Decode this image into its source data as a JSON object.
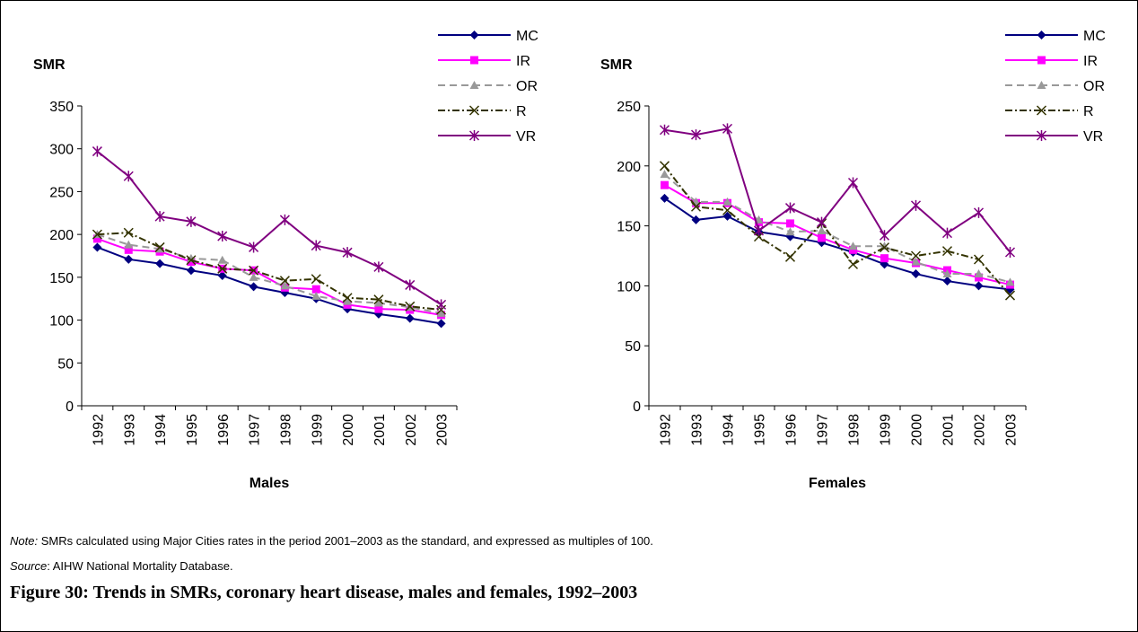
{
  "chart_data": [
    {
      "type": "line",
      "title": "Males",
      "ylabel": "SMR",
      "categories": [
        "1992",
        "1993",
        "1994",
        "1995",
        "1996",
        "1997",
        "1998",
        "1999",
        "2000",
        "2001",
        "2002",
        "2003"
      ],
      "ylim": [
        0,
        350
      ],
      "yticks": [
        0,
        50,
        100,
        150,
        200,
        250,
        300,
        350
      ],
      "series": [
        {
          "name": "MC",
          "color": "#000080",
          "marker": "diamond",
          "dash": "solid",
          "values": [
            185,
            171,
            166,
            158,
            152,
            139,
            132,
            125,
            113,
            107,
            102,
            96
          ]
        },
        {
          "name": "IR",
          "color": "#ff00ff",
          "marker": "square",
          "dash": "solid",
          "values": [
            195,
            182,
            180,
            168,
            160,
            158,
            138,
            136,
            118,
            113,
            112,
            106
          ]
        },
        {
          "name": "OR",
          "color": "#999999",
          "marker": "triangle",
          "dash": "dashed",
          "values": [
            200,
            188,
            183,
            172,
            170,
            150,
            140,
            128,
            122,
            120,
            115,
            108
          ]
        },
        {
          "name": "R",
          "color": "#333300",
          "marker": "x",
          "dash": "dashdot",
          "values": [
            200,
            202,
            185,
            170,
            160,
            158,
            146,
            148,
            126,
            124,
            116,
            112
          ]
        },
        {
          "name": "VR",
          "color": "#800080",
          "marker": "star",
          "dash": "solid",
          "values": [
            297,
            268,
            221,
            215,
            198,
            185,
            217,
            187,
            179,
            162,
            141,
            118
          ]
        }
      ]
    },
    {
      "type": "line",
      "title": "Females",
      "ylabel": "SMR",
      "categories": [
        "1992",
        "1993",
        "1994",
        "1995",
        "1996",
        "1997",
        "1998",
        "1999",
        "2000",
        "2001",
        "2002",
        "2003"
      ],
      "ylim": [
        0,
        250
      ],
      "yticks": [
        0,
        50,
        100,
        150,
        200,
        250
      ],
      "series": [
        {
          "name": "MC",
          "color": "#000080",
          "marker": "diamond",
          "dash": "solid",
          "values": [
            173,
            155,
            158,
            145,
            141,
            136,
            128,
            118,
            110,
            104,
            100,
            97
          ]
        },
        {
          "name": "IR",
          "color": "#ff00ff",
          "marker": "square",
          "dash": "solid",
          "values": [
            184,
            169,
            169,
            153,
            152,
            140,
            130,
            123,
            119,
            113,
            107,
            101
          ]
        },
        {
          "name": "OR",
          "color": "#999999",
          "marker": "triangle",
          "dash": "dashed",
          "values": [
            193,
            170,
            170,
            155,
            145,
            146,
            133,
            133,
            120,
            110,
            110,
            103
          ]
        },
        {
          "name": "R",
          "color": "#333300",
          "marker": "x",
          "dash": "dashdot",
          "values": [
            200,
            166,
            163,
            141,
            124,
            152,
            118,
            132,
            125,
            129,
            122,
            92
          ]
        },
        {
          "name": "VR",
          "color": "#800080",
          "marker": "star",
          "dash": "solid",
          "values": [
            230,
            226,
            231,
            146,
            165,
            153,
            186,
            142,
            167,
            144,
            161,
            128
          ]
        }
      ]
    }
  ],
  "note": {
    "label": "Note:",
    "text": "SMRs calculated using Major Cities rates in the period 2001–2003 as the standard, and expressed as multiples of 100."
  },
  "source": {
    "label": "Source",
    "text": ": AIHW National Mortality Database."
  },
  "caption": "Figure 30: Trends in SMRs, coronary heart disease, males and females, 1992–2003"
}
